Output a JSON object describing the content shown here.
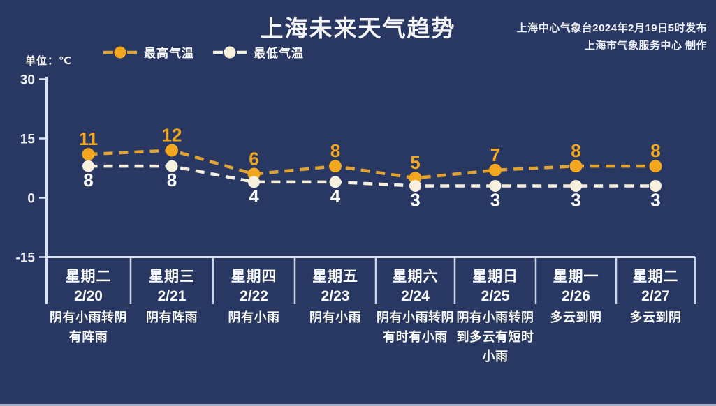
{
  "header": {
    "title": "上海未来天气趋势",
    "issued_by": "上海中心气象台2024年2月19日5时发布",
    "produced_by": "上海市气象服务中心 制作"
  },
  "unit_label": "单位：℃",
  "legend": {
    "high_label": "最高气温",
    "low_label": "最低气温"
  },
  "colors": {
    "background": "#293862",
    "high_temp": "#F2A71E",
    "high_temp_line": "#DFA433",
    "low_temp_dot": "#F6F0DD",
    "low_temp_label": "#FFFFFF",
    "axis": "#DCE3EF"
  },
  "chart_data": {
    "type": "line",
    "title": "上海未来天气趋势",
    "ylabel": "单位：℃",
    "yticks": [
      30,
      15,
      0,
      -15
    ],
    "ylim": [
      -15,
      30
    ],
    "grid": false,
    "legend_position": "top-left",
    "line_style": "dashed",
    "days": [
      {
        "weekday": "星期二",
        "date": "2/20",
        "weather_lines": [
          "阴有小雨转阴",
          "有阵雨"
        ]
      },
      {
        "weekday": "星期三",
        "date": "2/21",
        "weather_lines": [
          "阴有阵雨"
        ]
      },
      {
        "weekday": "星期四",
        "date": "2/22",
        "weather_lines": [
          "阴有小雨"
        ]
      },
      {
        "weekday": "星期五",
        "date": "2/23",
        "weather_lines": [
          "阴有小雨"
        ]
      },
      {
        "weekday": "星期六",
        "date": "2/24",
        "weather_lines": [
          "阴有小雨转阴",
          "有时有小雨"
        ]
      },
      {
        "weekday": "星期日",
        "date": "2/25",
        "weather_lines": [
          "阴有小雨转阴",
          "到多云有短时",
          "小雨"
        ]
      },
      {
        "weekday": "星期一",
        "date": "2/26",
        "weather_lines": [
          "多云到阴"
        ]
      },
      {
        "weekday": "星期二",
        "date": "2/27",
        "weather_lines": [
          "多云到阴"
        ]
      }
    ],
    "series": [
      {
        "name": "最高气温",
        "values": [
          11,
          12,
          6,
          8,
          5,
          7,
          8,
          8
        ],
        "color": "#F2A71E",
        "line_color": "#DFA433",
        "label_color": "#F2A71E"
      },
      {
        "name": "最低气温",
        "values": [
          8,
          8,
          4,
          4,
          3,
          3,
          3,
          3
        ],
        "color": "#F6F0DD",
        "line_color": "#F4EEDE",
        "label_color": "#FFFFFF"
      }
    ]
  }
}
